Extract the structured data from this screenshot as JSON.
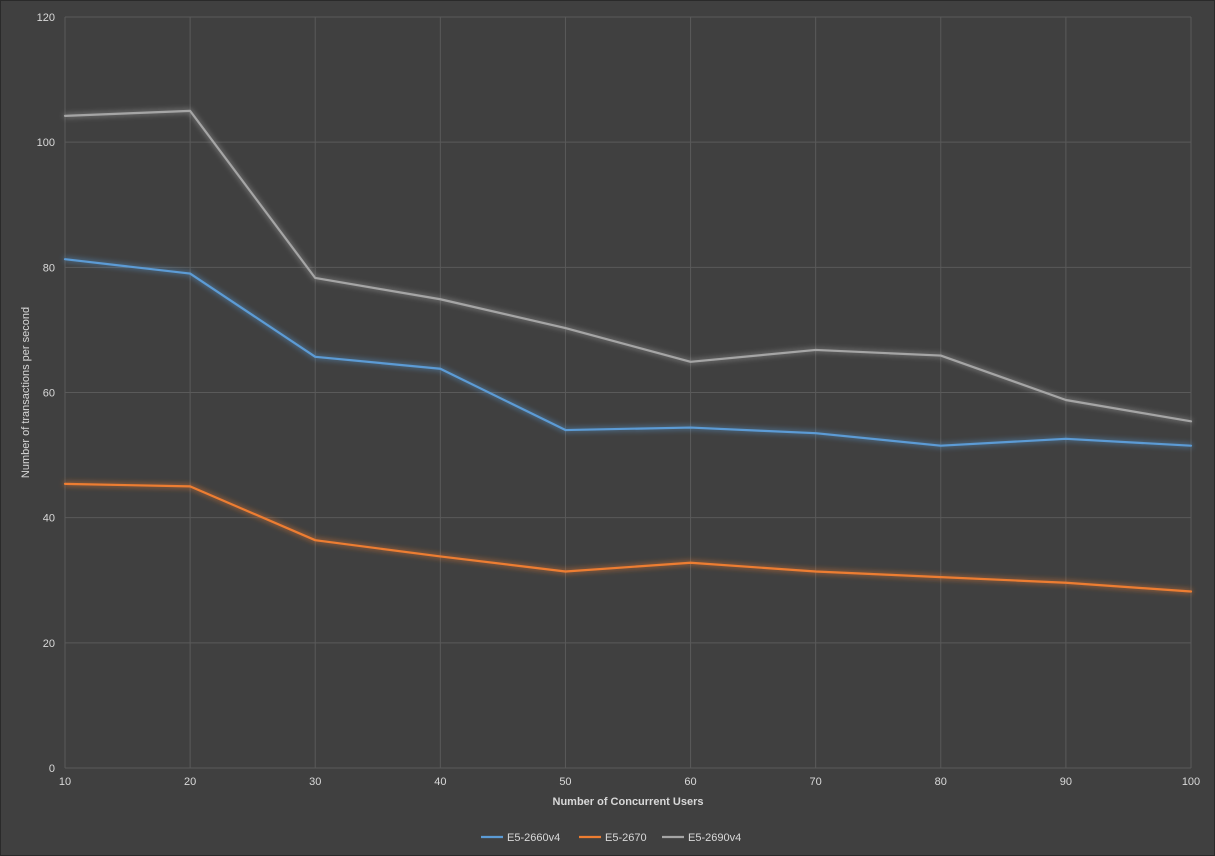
{
  "chart_data": {
    "type": "line",
    "title": "",
    "xlabel": "Number of Concurrent Users",
    "ylabel": "Number of transactions per second",
    "x": [
      10,
      20,
      30,
      40,
      50,
      60,
      70,
      80,
      90,
      100
    ],
    "xlim": [
      10,
      100
    ],
    "ylim": [
      0,
      120
    ],
    "y_ticks": [
      0,
      20,
      40,
      60,
      80,
      100,
      120
    ],
    "grid": true,
    "legend_position": "bottom",
    "background": "#404040",
    "series": [
      {
        "name": "E5-2660v4",
        "color": "#5b9bd5",
        "values": [
          81.3,
          79.0,
          65.7,
          63.8,
          54.0,
          54.4,
          53.5,
          51.5,
          52.6,
          51.5
        ]
      },
      {
        "name": "E5-2670",
        "color": "#ed7d31",
        "values": [
          45.4,
          45.0,
          36.4,
          33.8,
          31.4,
          32.8,
          31.4,
          30.5,
          29.6,
          28.2
        ]
      },
      {
        "name": "E5-2690v4",
        "color": "#a5a5a5",
        "values": [
          104.2,
          105.0,
          78.3,
          74.9,
          70.3,
          64.9,
          66.8,
          65.9,
          58.8,
          55.4
        ]
      }
    ]
  }
}
